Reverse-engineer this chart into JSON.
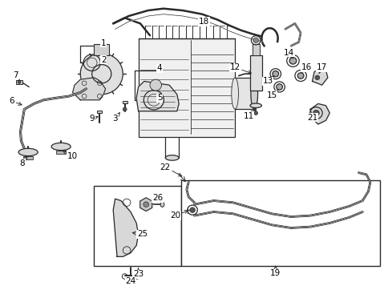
{
  "background_color": "#ffffff",
  "line_color": "#2a2a2a",
  "label_color": "#000000",
  "fig_width": 4.85,
  "fig_height": 3.57,
  "dpi": 100,
  "xlim": [
    0,
    10
  ],
  "ylim": [
    0,
    7.5
  ]
}
